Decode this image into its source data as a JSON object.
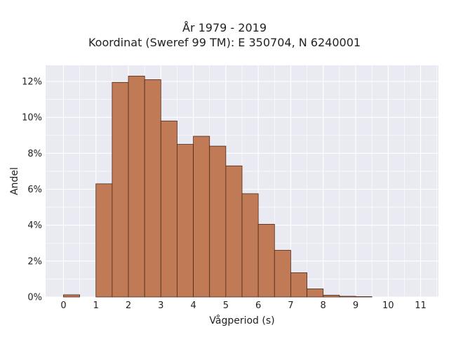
{
  "chart_data": {
    "type": "bar",
    "title_line1": "År 1979 - 2019",
    "title_line2": "Koordinat (Sweref 99 TM): E 350704, N 6240001",
    "xlabel": "Vågperiod (s)",
    "ylabel": "Andel",
    "bin_width": 0.5,
    "bins": [
      {
        "x": 0.0,
        "value": 0.12
      },
      {
        "x": 0.5,
        "value": 0.0
      },
      {
        "x": 1.0,
        "value": 6.3
      },
      {
        "x": 1.5,
        "value": 11.95
      },
      {
        "x": 2.0,
        "value": 12.3
      },
      {
        "x": 2.5,
        "value": 12.1
      },
      {
        "x": 3.0,
        "value": 9.8
      },
      {
        "x": 3.5,
        "value": 8.5
      },
      {
        "x": 4.0,
        "value": 8.95
      },
      {
        "x": 4.5,
        "value": 8.4
      },
      {
        "x": 5.0,
        "value": 7.3
      },
      {
        "x": 5.5,
        "value": 5.75
      },
      {
        "x": 6.0,
        "value": 4.05
      },
      {
        "x": 6.5,
        "value": 2.6
      },
      {
        "x": 7.0,
        "value": 1.35
      },
      {
        "x": 7.5,
        "value": 0.45
      },
      {
        "x": 8.0,
        "value": 0.1
      },
      {
        "x": 8.5,
        "value": 0.04
      },
      {
        "x": 9.0,
        "value": 0.02
      }
    ],
    "xticks": [
      "0",
      "1",
      "2",
      "3",
      "4",
      "5",
      "6",
      "7",
      "8",
      "9",
      "10",
      "11"
    ],
    "yticks": [
      "0%",
      "2%",
      "4%",
      "6%",
      "8%",
      "10%",
      "12%"
    ],
    "xlim": [
      -0.55,
      11.55
    ],
    "ylim": [
      0,
      12.9
    ],
    "grid": true,
    "colors": {
      "bar_fill": "#c07b56",
      "bar_edge": "#4a2a1a",
      "plot_bg": "#eaeaf2",
      "grid": "#ffffff"
    }
  }
}
